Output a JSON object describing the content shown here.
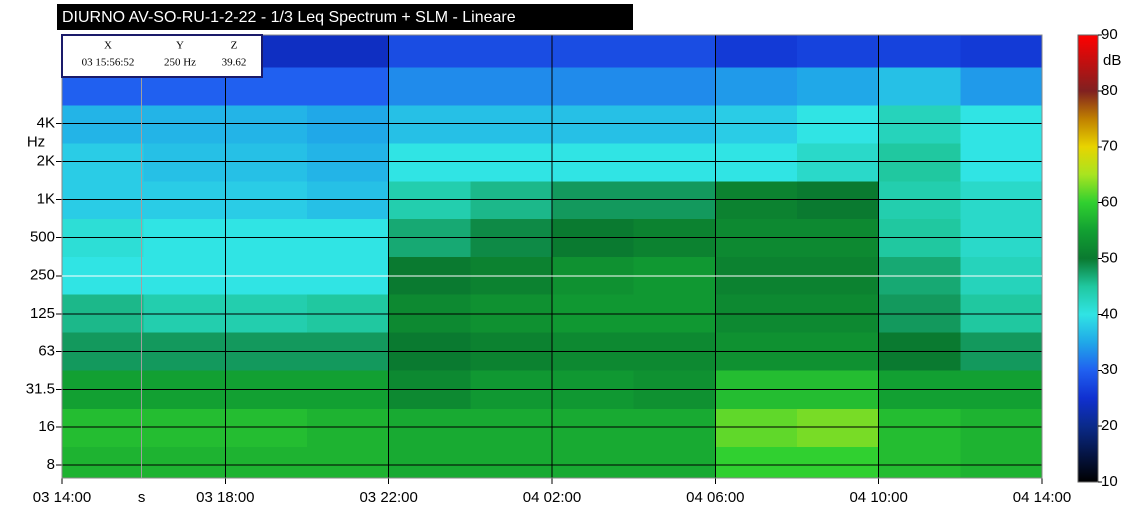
{
  "chart_data": {
    "type": "heatmap",
    "title": "DIURNO AV-SO-RU-1-2-22 - 1/3 Leq Spectrum + SLM - Lineare",
    "y_label": "Hz",
    "colorbar_label": "dB",
    "x_bins": [
      0,
      2,
      4,
      6,
      8,
      10,
      12,
      14,
      16,
      18,
      20,
      22,
      24
    ],
    "y_bins": [
      6.3,
      11.2,
      22.4,
      45,
      90,
      180,
      355,
      710,
      1400,
      2800,
      5600,
      11200,
      20000
    ],
    "z": [
      [
        57,
        57,
        57,
        57,
        56,
        56,
        56,
        56,
        60,
        60,
        58,
        57
      ],
      [
        58,
        58,
        58,
        57,
        56,
        56,
        56,
        56,
        62,
        63,
        58,
        57
      ],
      [
        55,
        55,
        55,
        55,
        52,
        54,
        54,
        53,
        58,
        58,
        55,
        55
      ],
      [
        48,
        48,
        48,
        48,
        50,
        51,
        52,
        52,
        53,
        53,
        50,
        48
      ],
      [
        46,
        44,
        44,
        45,
        52,
        53,
        54,
        54,
        52,
        52,
        48,
        45
      ],
      [
        40,
        40,
        40,
        40,
        50,
        51,
        53,
        54,
        51,
        51,
        47,
        43
      ],
      [
        41,
        40,
        40,
        40,
        47,
        49,
        50,
        51,
        52,
        52,
        45,
        42
      ],
      [
        38,
        38,
        38,
        37,
        44,
        46,
        48,
        48,
        51,
        50,
        44,
        42
      ],
      [
        38,
        37,
        37,
        36,
        40,
        40,
        40,
        40,
        40,
        42,
        45,
        40
      ],
      [
        36,
        36,
        36,
        35,
        37,
        37,
        37,
        37,
        38,
        40,
        43,
        40
      ],
      [
        30,
        30,
        30,
        30,
        33,
        33,
        33,
        33,
        34,
        35,
        37,
        34
      ],
      [
        24,
        24,
        24,
        24,
        28,
        28,
        28,
        28,
        26,
        27,
        27,
        26
      ]
    ],
    "xlim": [
      0,
      24
    ],
    "xticks": [
      {
        "value": 0,
        "label": "03 14:00"
      },
      {
        "value": 4,
        "label": "03 18:00"
      },
      {
        "value": 8,
        "label": "03 22:00"
      },
      {
        "value": 12,
        "label": "04 02:00"
      },
      {
        "value": 16,
        "label": "04 06:00"
      },
      {
        "value": 20,
        "label": "04 10:00"
      },
      {
        "value": 24,
        "label": "04 14:00"
      }
    ],
    "ylim": [
      6.3,
      20000
    ],
    "ylog": true,
    "yticks": [
      8,
      16,
      31.5,
      63,
      125,
      250,
      500,
      {
        "value": 1000,
        "label": "1K"
      },
      {
        "value": 2000,
        "label": "2K"
      },
      {
        "value": 4000,
        "label": "4K"
      }
    ],
    "clim": [
      10,
      90
    ],
    "cticks": [
      10,
      20,
      30,
      40,
      50,
      60,
      70,
      80,
      90
    ],
    "colorscale": [
      [
        10,
        "#000000"
      ],
      [
        20,
        "#0a2a8a"
      ],
      [
        25,
        "#1030d0"
      ],
      [
        30,
        "#2060f0"
      ],
      [
        35,
        "#20a8e8"
      ],
      [
        40,
        "#30e4e4"
      ],
      [
        45,
        "#20c8a0"
      ],
      [
        50,
        "#0a7a30"
      ],
      [
        55,
        "#12a032"
      ],
      [
        60,
        "#30d030"
      ],
      [
        65,
        "#a8e420"
      ],
      [
        70,
        "#e8d400"
      ],
      [
        75,
        "#c08000"
      ],
      [
        80,
        "#802020"
      ],
      [
        90,
        "#ff0000"
      ]
    ],
    "grid": true,
    "cursor": {
      "x": 1.95,
      "y": 250,
      "axis_label": "s",
      "headers": [
        "X",
        "Y",
        "Z"
      ],
      "x_text": "03 15:56:52",
      "y_text": "250 Hz",
      "z": 39.62
    }
  }
}
